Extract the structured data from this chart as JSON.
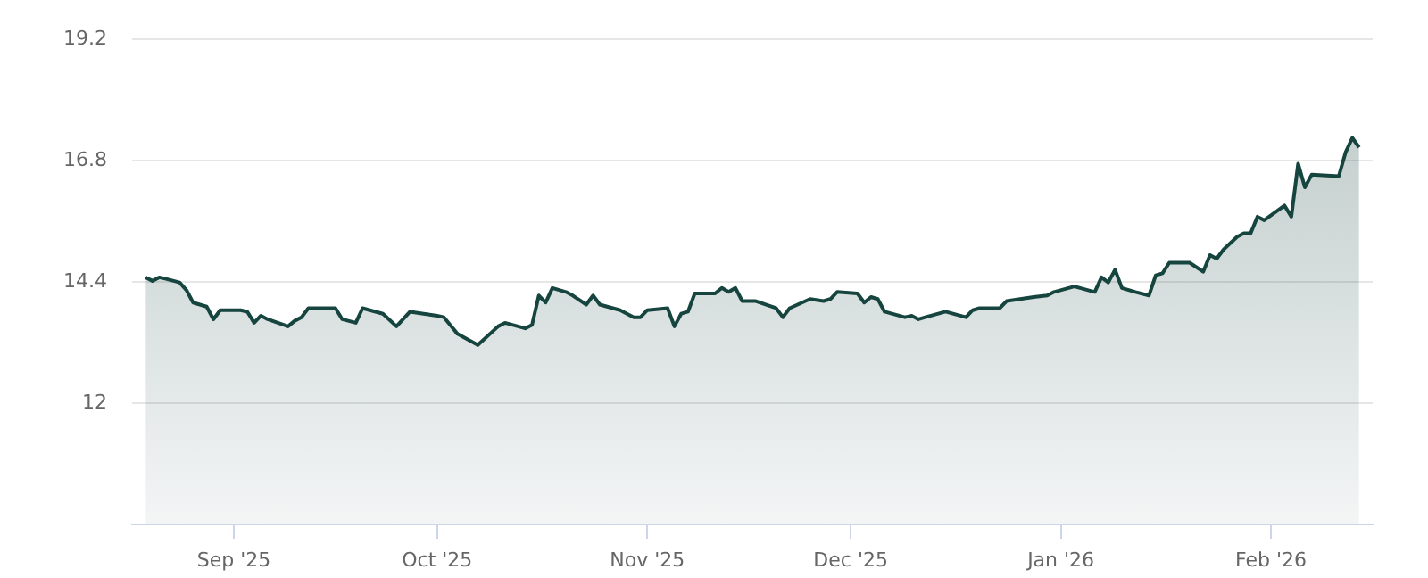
{
  "chart_data": {
    "type": "area",
    "x": [
      "2025-08-19",
      "2025-08-20",
      "2025-08-21",
      "2025-08-22",
      "2025-08-24",
      "2025-08-25",
      "2025-08-26",
      "2025-08-28",
      "2025-08-29",
      "2025-08-30",
      "2025-09-02",
      "2025-09-03",
      "2025-09-04",
      "2025-09-05",
      "2025-09-06",
      "2025-09-09",
      "2025-09-10",
      "2025-09-11",
      "2025-09-12",
      "2025-09-16",
      "2025-09-17",
      "2025-09-19",
      "2025-09-20",
      "2025-09-23",
      "2025-09-25",
      "2025-09-27",
      "2025-10-01",
      "2025-10-02",
      "2025-10-04",
      "2025-10-07",
      "2025-10-10",
      "2025-10-11",
      "2025-10-14",
      "2025-10-15",
      "2025-10-16",
      "2025-10-17",
      "2025-10-18",
      "2025-10-20",
      "2025-10-21",
      "2025-10-23",
      "2025-10-24",
      "2025-10-25",
      "2025-10-28",
      "2025-10-29",
      "2025-10-30",
      "2025-10-31",
      "2025-11-01",
      "2025-11-04",
      "2025-11-05",
      "2025-11-06",
      "2025-11-07",
      "2025-11-08",
      "2025-11-11",
      "2025-11-12",
      "2025-11-13",
      "2025-11-14",
      "2025-11-15",
      "2025-11-17",
      "2025-11-20",
      "2025-11-21",
      "2025-11-22",
      "2025-11-25",
      "2025-11-27",
      "2025-11-28",
      "2025-11-29",
      "2025-12-02",
      "2025-12-03",
      "2025-12-04",
      "2025-12-05",
      "2025-12-06",
      "2025-12-09",
      "2025-12-10",
      "2025-12-11",
      "2025-12-12",
      "2025-12-15",
      "2025-12-18",
      "2025-12-19",
      "2025-12-20",
      "2025-12-23",
      "2025-12-24",
      "2025-12-28",
      "2025-12-30",
      "2025-12-31",
      "2026-01-03",
      "2026-01-06",
      "2026-01-07",
      "2026-01-08",
      "2026-01-09",
      "2026-01-10",
      "2026-01-12",
      "2026-01-14",
      "2026-01-15",
      "2026-01-16",
      "2026-01-17",
      "2026-01-20",
      "2026-01-22",
      "2026-01-23",
      "2026-01-24",
      "2026-01-25",
      "2026-01-27",
      "2026-01-28",
      "2026-01-29",
      "2026-01-30",
      "2026-01-31",
      "2026-02-03",
      "2026-02-04",
      "2026-02-05",
      "2026-02-06",
      "2026-02-07",
      "2026-02-11",
      "2026-02-12",
      "2026-02-13",
      "2026-02-14"
    ],
    "series": [
      {
        "color": "#16443f",
        "values": [
          14.49,
          14.42,
          14.49,
          14.46,
          14.39,
          14.24,
          13.99,
          13.91,
          13.66,
          13.84,
          13.84,
          13.81,
          13.59,
          13.73,
          13.66,
          13.52,
          13.63,
          13.7,
          13.88,
          13.88,
          13.66,
          13.59,
          13.88,
          13.77,
          13.52,
          13.81,
          13.73,
          13.7,
          13.37,
          13.15,
          13.52,
          13.59,
          13.48,
          13.55,
          14.13,
          13.99,
          14.28,
          14.2,
          14.13,
          13.95,
          14.13,
          13.95,
          13.84,
          13.77,
          13.7,
          13.7,
          13.84,
          13.88,
          13.52,
          13.77,
          13.81,
          14.17,
          14.17,
          14.28,
          14.2,
          14.28,
          14.02,
          14.02,
          13.88,
          13.7,
          13.88,
          14.06,
          14.02,
          14.06,
          14.2,
          14.17,
          13.99,
          14.1,
          14.06,
          13.81,
          13.7,
          13.73,
          13.66,
          13.7,
          13.81,
          13.7,
          13.84,
          13.88,
          13.88,
          14.02,
          14.1,
          14.13,
          14.2,
          14.31,
          14.2,
          14.49,
          14.39,
          14.64,
          14.28,
          14.2,
          14.13,
          14.53,
          14.57,
          14.78,
          14.78,
          14.6,
          14.93,
          14.86,
          15.04,
          15.29,
          15.36,
          15.36,
          15.69,
          15.62,
          15.91,
          15.69,
          16.74,
          16.27,
          16.52,
          16.49,
          16.96,
          17.25,
          17.06
        ]
      }
    ],
    "xlim": [
      "2025-08-17",
      "2026-02-16"
    ],
    "xticks": [
      {
        "value": "2025-09-01",
        "label": "Sep '25"
      },
      {
        "value": "2025-10-01",
        "label": "Oct '25"
      },
      {
        "value": "2025-11-01",
        "label": "Nov '25"
      },
      {
        "value": "2025-12-01",
        "label": "Dec '25"
      },
      {
        "value": "2026-01-01",
        "label": "Jan '26"
      },
      {
        "value": "2026-02-01",
        "label": "Feb '26"
      }
    ],
    "ylim": [
      9.6,
      19.2
    ],
    "yticks": [
      {
        "value": 9.6,
        "label": null
      },
      12,
      14.4,
      16.8,
      19.2
    ],
    "grid": "y",
    "legend": false,
    "marker": "none",
    "line_style": "solid"
  }
}
